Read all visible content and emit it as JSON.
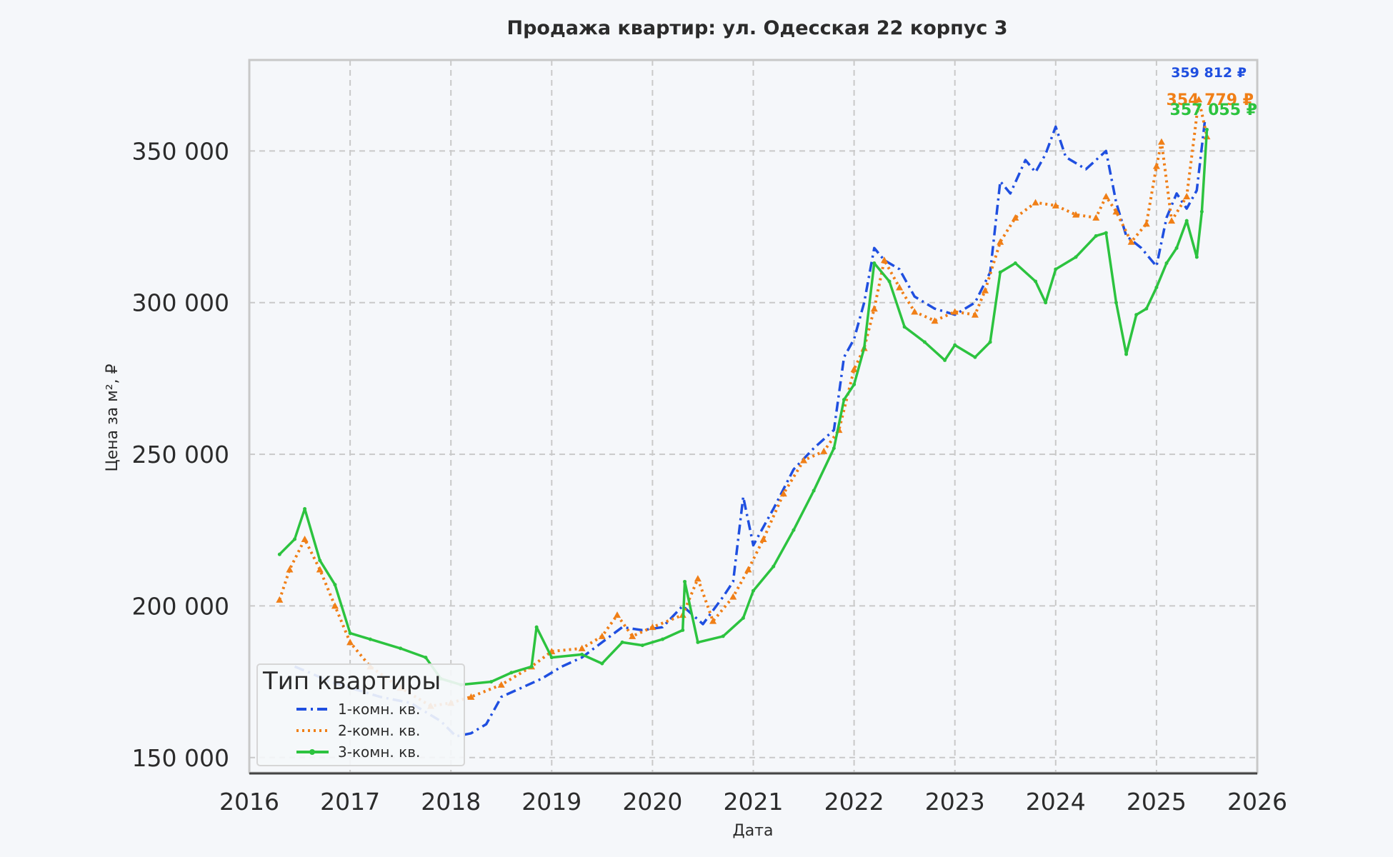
{
  "chart_data": {
    "type": "line",
    "title": "Продажа квартир: ул. Одесская 22 корпус 3",
    "xlabel": "Дата",
    "ylabel": "Цена за м², ₽",
    "xlim": [
      2016,
      2026
    ],
    "ylim": [
      145000,
      380000
    ],
    "x_ticks": [
      2016,
      2017,
      2018,
      2019,
      2020,
      2021,
      2022,
      2023,
      2024,
      2025,
      2026
    ],
    "x_tick_labels": [
      "2016",
      "2017",
      "2018",
      "2019",
      "2020",
      "2021",
      "2022",
      "2023",
      "2024",
      "2025",
      "2026"
    ],
    "y_ticks": [
      150000,
      200000,
      250000,
      300000,
      350000
    ],
    "y_tick_labels": [
      "150 000",
      "200 000",
      "250 000",
      "300 000",
      "350 000"
    ],
    "grid": true,
    "legend": {
      "title": "Тип квартиры",
      "position": "lower-left"
    },
    "annotations": [
      {
        "text": "359 812 ₽",
        "series": "1-комн. кв.",
        "color": "#1f4fe0"
      },
      {
        "text": "354 779 ₽",
        "series": "2-комн. кв.",
        "color": "#f07f17"
      },
      {
        "text": "357 055 ₽",
        "series": "3-комн. кв.",
        "color": "#2cc33f"
      }
    ],
    "series": [
      {
        "name": "1-комн. кв.",
        "color": "#1f4fe0",
        "style": "dashdot",
        "x": [
          2016.45,
          2016.6,
          2016.8,
          2017.0,
          2017.3,
          2017.6,
          2017.9,
          2018.05,
          2018.2,
          2018.35,
          2018.5,
          2018.7,
          2018.9,
          2019.1,
          2019.3,
          2019.5,
          2019.7,
          2019.9,
          2020.1,
          2020.3,
          2020.5,
          2020.7,
          2020.8,
          2020.9,
          2021.0,
          2021.2,
          2021.4,
          2021.6,
          2021.7,
          2021.8,
          2021.9,
          2022.0,
          2022.1,
          2022.2,
          2022.3,
          2022.45,
          2022.6,
          2022.8,
          2023.0,
          2023.2,
          2023.35,
          2023.45,
          2023.55,
          2023.7,
          2023.8,
          2023.9,
          2024.0,
          2024.1,
          2024.3,
          2024.5,
          2024.6,
          2024.7,
          2024.85,
          2025.0,
          2025.1,
          2025.2,
          2025.3,
          2025.4,
          2025.48
        ],
        "y": [
          180000,
          178000,
          175000,
          173000,
          170000,
          168000,
          162000,
          157000,
          158000,
          161000,
          170000,
          173000,
          176000,
          180000,
          183000,
          188000,
          193000,
          192000,
          193000,
          200000,
          194000,
          203000,
          208000,
          236000,
          220000,
          232000,
          245000,
          252000,
          255000,
          258000,
          282000,
          288000,
          300000,
          318000,
          314000,
          311000,
          302000,
          298000,
          296000,
          300000,
          310000,
          340000,
          336000,
          347000,
          343000,
          349000,
          358000,
          348000,
          344000,
          350000,
          333000,
          322000,
          318000,
          312000,
          328000,
          336000,
          331000,
          337000,
          359812
        ]
      },
      {
        "name": "2-комн. кв.",
        "color": "#f07f17",
        "style": "dotted",
        "x": [
          2016.3,
          2016.4,
          2016.55,
          2016.7,
          2016.85,
          2017.0,
          2017.2,
          2017.5,
          2017.8,
          2018.0,
          2018.2,
          2018.5,
          2018.8,
          2019.0,
          2019.3,
          2019.5,
          2019.65,
          2019.8,
          2020.0,
          2020.3,
          2020.45,
          2020.6,
          2020.8,
          2020.95,
          2021.1,
          2021.3,
          2021.5,
          2021.7,
          2021.85,
          2022.0,
          2022.1,
          2022.2,
          2022.3,
          2022.45,
          2022.6,
          2022.8,
          2023.0,
          2023.2,
          2023.3,
          2023.45,
          2023.6,
          2023.8,
          2024.0,
          2024.2,
          2024.4,
          2024.5,
          2024.6,
          2024.75,
          2024.9,
          2025.0,
          2025.05,
          2025.15,
          2025.3,
          2025.42,
          2025.5
        ],
        "y": [
          202000,
          212000,
          222000,
          212000,
          200000,
          188000,
          180000,
          173000,
          167000,
          168000,
          170000,
          174000,
          180000,
          185000,
          186000,
          190000,
          197000,
          190000,
          193000,
          197000,
          209000,
          195000,
          203000,
          212000,
          222000,
          237000,
          248000,
          251000,
          258000,
          278000,
          285000,
          298000,
          314000,
          305000,
          297000,
          294000,
          297000,
          296000,
          304000,
          320000,
          328000,
          333000,
          332000,
          329000,
          328000,
          335000,
          330000,
          320000,
          326000,
          345000,
          353000,
          327000,
          335000,
          367000,
          354779
        ]
      },
      {
        "name": "3-комн. кв.",
        "color": "#2cc33f",
        "style": "solid-marker",
        "x": [
          2016.3,
          2016.45,
          2016.55,
          2016.7,
          2016.85,
          2017.0,
          2017.2,
          2017.5,
          2017.75,
          2017.9,
          2018.1,
          2018.4,
          2018.6,
          2018.8,
          2018.85,
          2019.0,
          2019.3,
          2019.5,
          2019.7,
          2019.9,
          2020.1,
          2020.3,
          2020.32,
          2020.45,
          2020.7,
          2020.9,
          2021.0,
          2021.2,
          2021.4,
          2021.6,
          2021.8,
          2021.9,
          2022.0,
          2022.1,
          2022.2,
          2022.35,
          2022.5,
          2022.7,
          2022.9,
          2023.0,
          2023.2,
          2023.35,
          2023.45,
          2023.6,
          2023.8,
          2023.9,
          2024.0,
          2024.2,
          2024.4,
          2024.5,
          2024.6,
          2024.7,
          2024.8,
          2024.9,
          2025.0,
          2025.1,
          2025.2,
          2025.3,
          2025.4,
          2025.45,
          2025.5
        ],
        "y": [
          217000,
          222000,
          232000,
          215000,
          207000,
          191000,
          189000,
          186000,
          183000,
          176000,
          174000,
          175000,
          178000,
          180000,
          193000,
          183000,
          184000,
          181000,
          188000,
          187000,
          189000,
          192000,
          208000,
          188000,
          190000,
          196000,
          205000,
          213000,
          225000,
          238000,
          252000,
          268000,
          273000,
          285000,
          313000,
          307000,
          292000,
          287000,
          281000,
          286000,
          282000,
          287000,
          310000,
          313000,
          307000,
          300000,
          311000,
          315000,
          322000,
          323000,
          300000,
          283000,
          296000,
          298000,
          305000,
          313000,
          318000,
          327000,
          315000,
          330000,
          357055
        ]
      }
    ]
  }
}
